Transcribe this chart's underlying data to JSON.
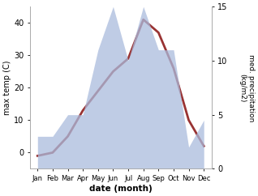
{
  "months": [
    "Jan",
    "Feb",
    "Mar",
    "Apr",
    "May",
    "Jun",
    "Jul",
    "Aug",
    "Sep",
    "Oct",
    "Nov",
    "Dec"
  ],
  "month_positions": [
    1,
    2,
    3,
    4,
    5,
    6,
    7,
    8,
    9,
    10,
    11,
    12
  ],
  "temp_max": [
    -1,
    0,
    5,
    13,
    19,
    25,
    29,
    41,
    37,
    26,
    10,
    2
  ],
  "precip": [
    3,
    3,
    5,
    5,
    11,
    15,
    10,
    15,
    11,
    11,
    2,
    4.5
  ],
  "temp_ylim": [
    -5,
    45
  ],
  "precip_ylim": [
    0,
    15
  ],
  "temp_yticks": [
    0,
    10,
    20,
    30,
    40
  ],
  "precip_yticks": [
    0,
    5,
    10,
    15
  ],
  "fill_color": "#aabbdd",
  "fill_alpha": 0.75,
  "line_color": "#993333",
  "line_width": 2.0,
  "xlabel": "date (month)",
  "ylabel_left": "max temp (C)",
  "ylabel_right": "med. precipitation\n(kg/m2)",
  "bg_color": "#ffffff"
}
